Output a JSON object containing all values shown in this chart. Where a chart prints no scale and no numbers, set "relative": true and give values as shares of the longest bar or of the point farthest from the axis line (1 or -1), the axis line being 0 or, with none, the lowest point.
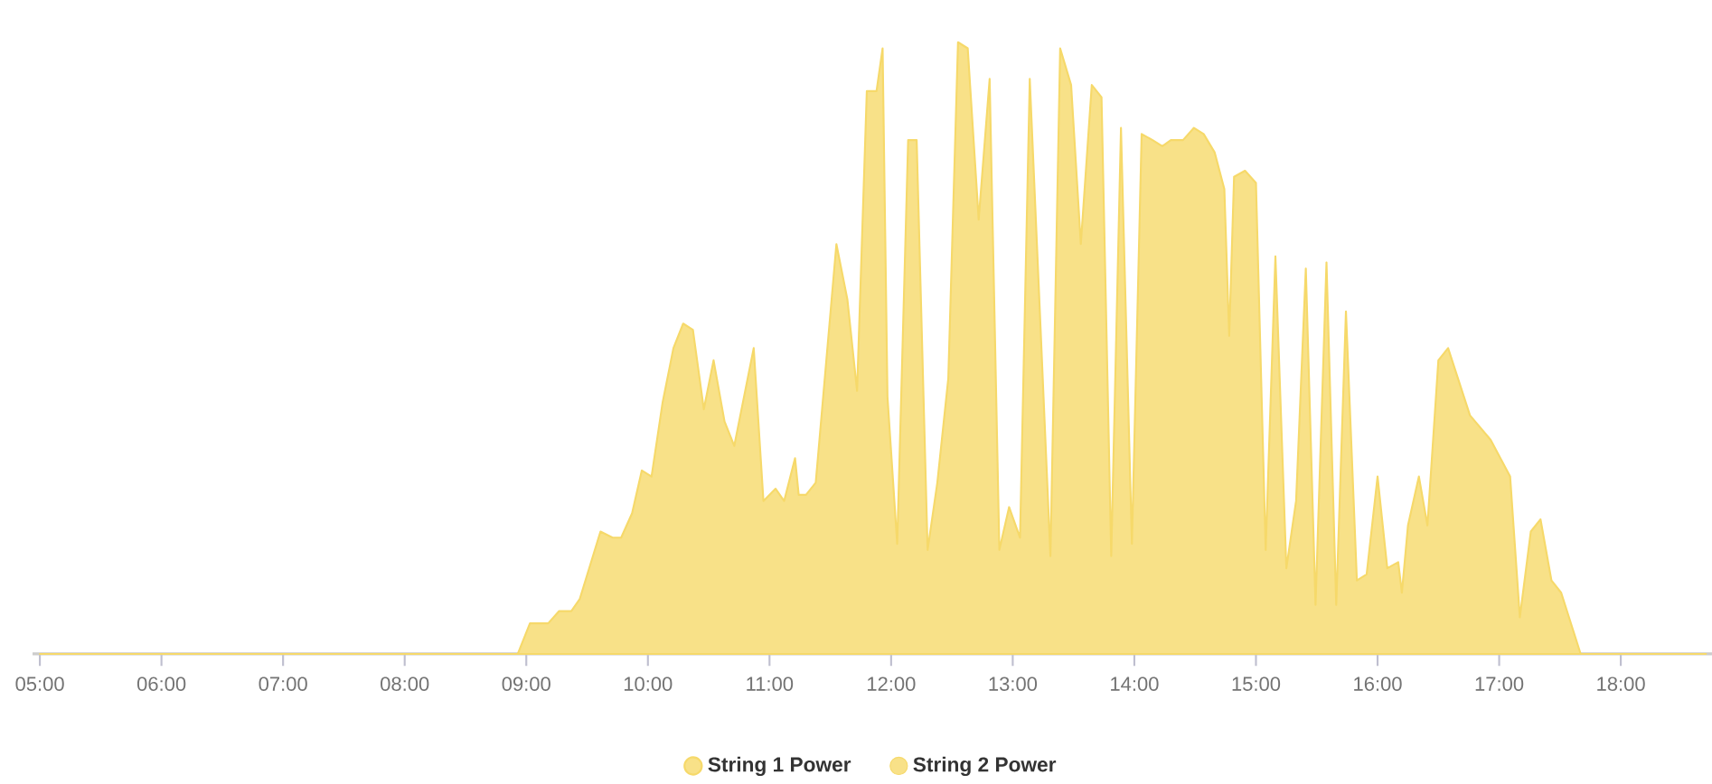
{
  "chart_data": {
    "type": "area",
    "relative": true,
    "legend": "bottom",
    "x": [
      5.0,
      8.93,
      9.03,
      9.18,
      9.27,
      9.37,
      9.44,
      9.61,
      9.71,
      9.78,
      9.87,
      9.95,
      10.03,
      10.12,
      10.21,
      10.29,
      10.37,
      10.46,
      10.54,
      10.63,
      10.71,
      10.87,
      10.95,
      11.05,
      11.12,
      11.21,
      11.24,
      11.3,
      11.38,
      11.55,
      11.64,
      11.72,
      11.8,
      11.88,
      11.93,
      11.97,
      12.05,
      12.14,
      12.21,
      12.3,
      12.38,
      12.47,
      12.55,
      12.63,
      12.72,
      12.81,
      12.89,
      12.97,
      13.06,
      13.14,
      13.31,
      13.39,
      13.48,
      13.56,
      13.65,
      13.73,
      13.81,
      13.89,
      13.98,
      14.06,
      14.15,
      14.23,
      14.3,
      14.4,
      14.49,
      14.57,
      14.66,
      14.74,
      14.78,
      14.82,
      14.91,
      15.0,
      15.08,
      15.16,
      15.25,
      15.33,
      15.41,
      15.49,
      15.58,
      15.66,
      15.74,
      15.83,
      15.91,
      16.0,
      16.08,
      16.17,
      16.2,
      16.25,
      16.34,
      16.41,
      16.5,
      16.58,
      16.76,
      16.93,
      17.09,
      17.17,
      17.26,
      17.34,
      17.43,
      17.51,
      17.67,
      18.7
    ],
    "series": [
      {
        "name": "String 1 Power",
        "color": "#f6d96a",
        "values": [
          0,
          0,
          0.05,
          0.05,
          0.07,
          0.07,
          0.09,
          0.2,
          0.19,
          0.19,
          0.23,
          0.3,
          0.29,
          0.41,
          0.5,
          0.54,
          0.53,
          0.4,
          0.48,
          0.38,
          0.34,
          0.5,
          0.25,
          0.27,
          0.25,
          0.32,
          0.26,
          0.26,
          0.28,
          0.67,
          0.58,
          0.43,
          0.92,
          0.92,
          0.99,
          0.42,
          0.18,
          0.84,
          0.84,
          0.17,
          0.28,
          0.45,
          1.0,
          0.99,
          0.71,
          0.94,
          0.17,
          0.24,
          0.19,
          0.94,
          0.16,
          0.99,
          0.93,
          0.67,
          0.93,
          0.91,
          0.16,
          0.86,
          0.18,
          0.85,
          0.84,
          0.83,
          0.84,
          0.84,
          0.86,
          0.85,
          0.82,
          0.76,
          0.52,
          0.78,
          0.79,
          0.77,
          0.17,
          0.65,
          0.14,
          0.25,
          0.63,
          0.08,
          0.64,
          0.08,
          0.56,
          0.12,
          0.13,
          0.29,
          0.14,
          0.15,
          0.1,
          0.21,
          0.29,
          0.21,
          0.48,
          0.5,
          0.39,
          0.35,
          0.29,
          0.06,
          0.2,
          0.22,
          0.12,
          0.1,
          0,
          0
        ]
      },
      {
        "name": "String 2 Power",
        "color": "#f6d96a",
        "values": [
          null,
          null,
          null,
          null,
          null,
          null,
          null,
          null,
          null,
          null,
          null,
          null,
          null,
          null,
          null,
          null,
          null,
          null,
          null,
          null,
          null,
          null,
          null,
          null,
          null,
          null,
          null,
          null,
          null,
          null,
          null,
          null,
          null,
          null,
          null,
          null,
          null,
          null,
          null,
          null,
          null,
          null,
          null,
          null,
          null,
          null,
          null,
          null,
          null,
          null,
          null,
          null,
          null,
          null,
          null,
          null,
          null,
          null,
          null,
          null,
          null,
          null,
          null,
          null,
          null,
          null,
          null,
          null,
          null,
          null,
          null,
          null,
          null,
          null,
          null,
          null,
          null,
          null,
          null,
          null,
          null,
          null,
          null,
          null,
          null,
          null,
          null,
          null,
          null,
          null,
          null,
          null,
          null,
          null,
          null,
          null,
          null,
          null,
          null,
          null,
          null,
          null
        ]
      }
    ],
    "xlim": [
      4.94,
      18.75
    ],
    "xticks": [
      {
        "value": 5,
        "label": "05:00"
      },
      {
        "value": 6,
        "label": "06:00"
      },
      {
        "value": 7,
        "label": "07:00"
      },
      {
        "value": 8,
        "label": "08:00"
      },
      {
        "value": 9,
        "label": "09:00"
      },
      {
        "value": 10,
        "label": "10:00"
      },
      {
        "value": 11,
        "label": "11:00"
      },
      {
        "value": 12,
        "label": "12:00"
      },
      {
        "value": 13,
        "label": "13:00"
      },
      {
        "value": 14,
        "label": "14:00"
      },
      {
        "value": 15,
        "label": "15:00"
      },
      {
        "value": 16,
        "label": "16:00"
      },
      {
        "value": 17,
        "label": "17:00"
      },
      {
        "value": 18,
        "label": "18:00"
      }
    ]
  }
}
